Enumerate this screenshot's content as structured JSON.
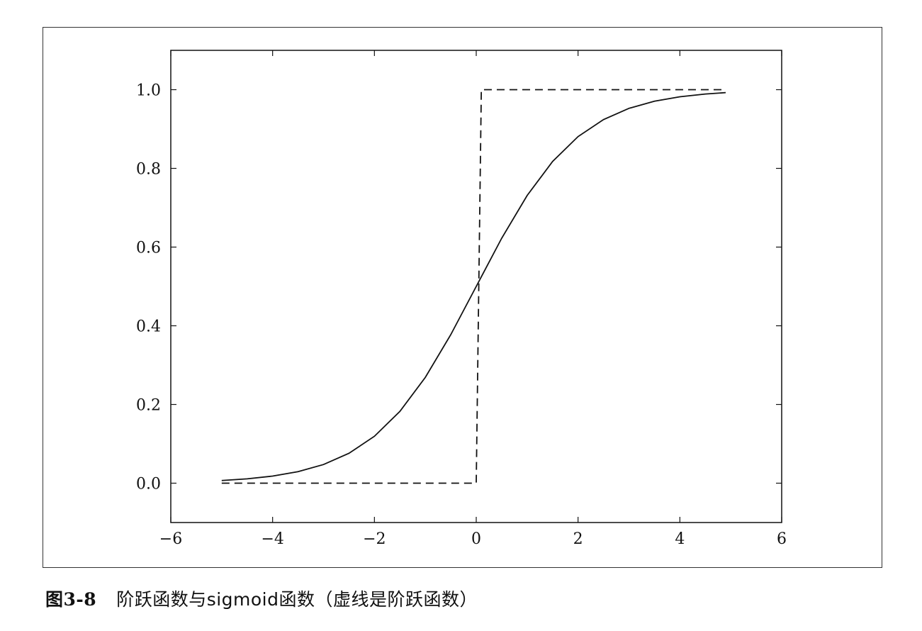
{
  "caption": {
    "figure_prefix": "图",
    "figure_number": "3-8",
    "text": "阶跃函数与sigmoid函数（虚线是阶跃函数）"
  },
  "chart_data": {
    "type": "line",
    "title": "",
    "xlabel": "",
    "ylabel": "",
    "xlim": [
      -6,
      6
    ],
    "ylim": [
      -0.1,
      1.1
    ],
    "x_ticks": [
      -6,
      -4,
      -2,
      0,
      2,
      4,
      6
    ],
    "x_tick_labels": [
      "−6",
      "−4",
      "−2",
      "0",
      "2",
      "4",
      "6"
    ],
    "y_ticks": [
      0.0,
      0.2,
      0.4,
      0.6,
      0.8,
      1.0
    ],
    "y_tick_labels": [
      "0.0",
      "0.2",
      "0.4",
      "0.6",
      "0.8",
      "1.0"
    ],
    "grid": false,
    "series": [
      {
        "style": "solid",
        "color": "#111111",
        "x": [
          -5.0,
          -4.5,
          -4.0,
          -3.5,
          -3.0,
          -2.5,
          -2.0,
          -1.5,
          -1.0,
          -0.5,
          0.0,
          0.5,
          1.0,
          1.5,
          2.0,
          2.5,
          3.0,
          3.5,
          4.0,
          4.5,
          4.9
        ],
        "y": [
          0.0067,
          0.011,
          0.018,
          0.0293,
          0.0474,
          0.0759,
          0.1192,
          0.1824,
          0.2689,
          0.3775,
          0.5,
          0.6225,
          0.7311,
          0.8176,
          0.8808,
          0.9241,
          0.9526,
          0.9707,
          0.982,
          0.989,
          0.9926
        ]
      },
      {
        "style": "dashed",
        "color": "#111111",
        "x": [
          -5.0,
          0.0,
          0.1,
          4.9
        ],
        "y": [
          0,
          0,
          1,
          1
        ]
      }
    ]
  }
}
